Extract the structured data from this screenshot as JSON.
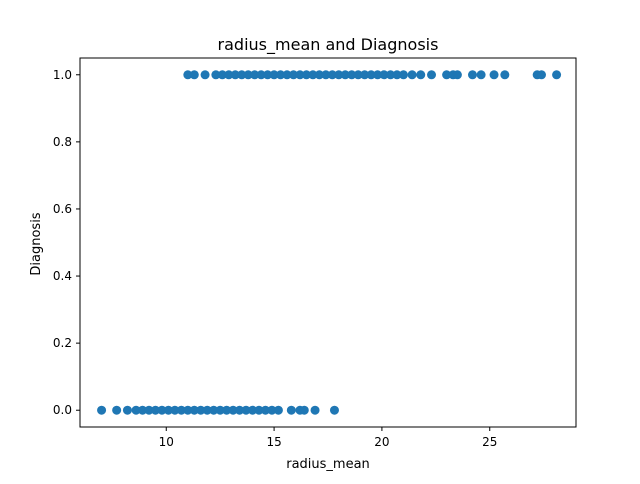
{
  "chart_data": {
    "type": "scatter",
    "title": "radius_mean and Diagnosis",
    "xlabel": "radius_mean",
    "ylabel": "Diagnosis",
    "xlim": [
      6.0,
      29.0
    ],
    "ylim": [
      -0.05,
      1.05
    ],
    "x_ticks": [
      10,
      15,
      20,
      25
    ],
    "y_ticks": [
      0.0,
      0.2,
      0.4,
      0.6,
      0.8,
      1.0
    ],
    "x_tick_labels": [
      "10",
      "15",
      "20",
      "25"
    ],
    "y_tick_labels": [
      "0.0",
      "0.2",
      "0.4",
      "0.6",
      "0.8",
      "1.0"
    ],
    "grid": false,
    "marker_color": "#1f77b4",
    "series": [
      {
        "values": [
          [
            11.0,
            1
          ],
          [
            11.3,
            1
          ],
          [
            11.8,
            1
          ],
          [
            12.3,
            1
          ],
          [
            12.6,
            1
          ],
          [
            12.9,
            1
          ],
          [
            13.2,
            1
          ],
          [
            13.5,
            1
          ],
          [
            13.8,
            1
          ],
          [
            14.1,
            1
          ],
          [
            14.4,
            1
          ],
          [
            14.7,
            1
          ],
          [
            15.0,
            1
          ],
          [
            15.3,
            1
          ],
          [
            15.6,
            1
          ],
          [
            15.9,
            1
          ],
          [
            16.2,
            1
          ],
          [
            16.5,
            1
          ],
          [
            16.8,
            1
          ],
          [
            17.1,
            1
          ],
          [
            17.4,
            1
          ],
          [
            17.7,
            1
          ],
          [
            18.0,
            1
          ],
          [
            18.3,
            1
          ],
          [
            18.6,
            1
          ],
          [
            18.9,
            1
          ],
          [
            19.2,
            1
          ],
          [
            19.5,
            1
          ],
          [
            19.8,
            1
          ],
          [
            20.1,
            1
          ],
          [
            20.4,
            1
          ],
          [
            20.7,
            1
          ],
          [
            21.0,
            1
          ],
          [
            21.4,
            1
          ],
          [
            21.8,
            1
          ],
          [
            22.3,
            1
          ],
          [
            23.0,
            1
          ],
          [
            23.3,
            1
          ],
          [
            23.5,
            1
          ],
          [
            24.2,
            1
          ],
          [
            24.6,
            1
          ],
          [
            25.2,
            1
          ],
          [
            25.7,
            1
          ],
          [
            27.2,
            1
          ],
          [
            27.4,
            1
          ],
          [
            28.1,
            1
          ],
          [
            7.0,
            0
          ],
          [
            7.7,
            0
          ],
          [
            8.2,
            0
          ],
          [
            8.6,
            0
          ],
          [
            8.9,
            0
          ],
          [
            9.2,
            0
          ],
          [
            9.5,
            0
          ],
          [
            9.8,
            0
          ],
          [
            10.1,
            0
          ],
          [
            10.4,
            0
          ],
          [
            10.7,
            0
          ],
          [
            11.0,
            0
          ],
          [
            11.3,
            0
          ],
          [
            11.6,
            0
          ],
          [
            11.9,
            0
          ],
          [
            12.2,
            0
          ],
          [
            12.5,
            0
          ],
          [
            12.8,
            0
          ],
          [
            13.1,
            0
          ],
          [
            13.4,
            0
          ],
          [
            13.7,
            0
          ],
          [
            14.0,
            0
          ],
          [
            14.3,
            0
          ],
          [
            14.6,
            0
          ],
          [
            14.9,
            0
          ],
          [
            15.2,
            0
          ],
          [
            15.8,
            0
          ],
          [
            16.2,
            0
          ],
          [
            16.4,
            0
          ],
          [
            16.9,
            0
          ],
          [
            17.8,
            0
          ]
        ]
      }
    ]
  }
}
